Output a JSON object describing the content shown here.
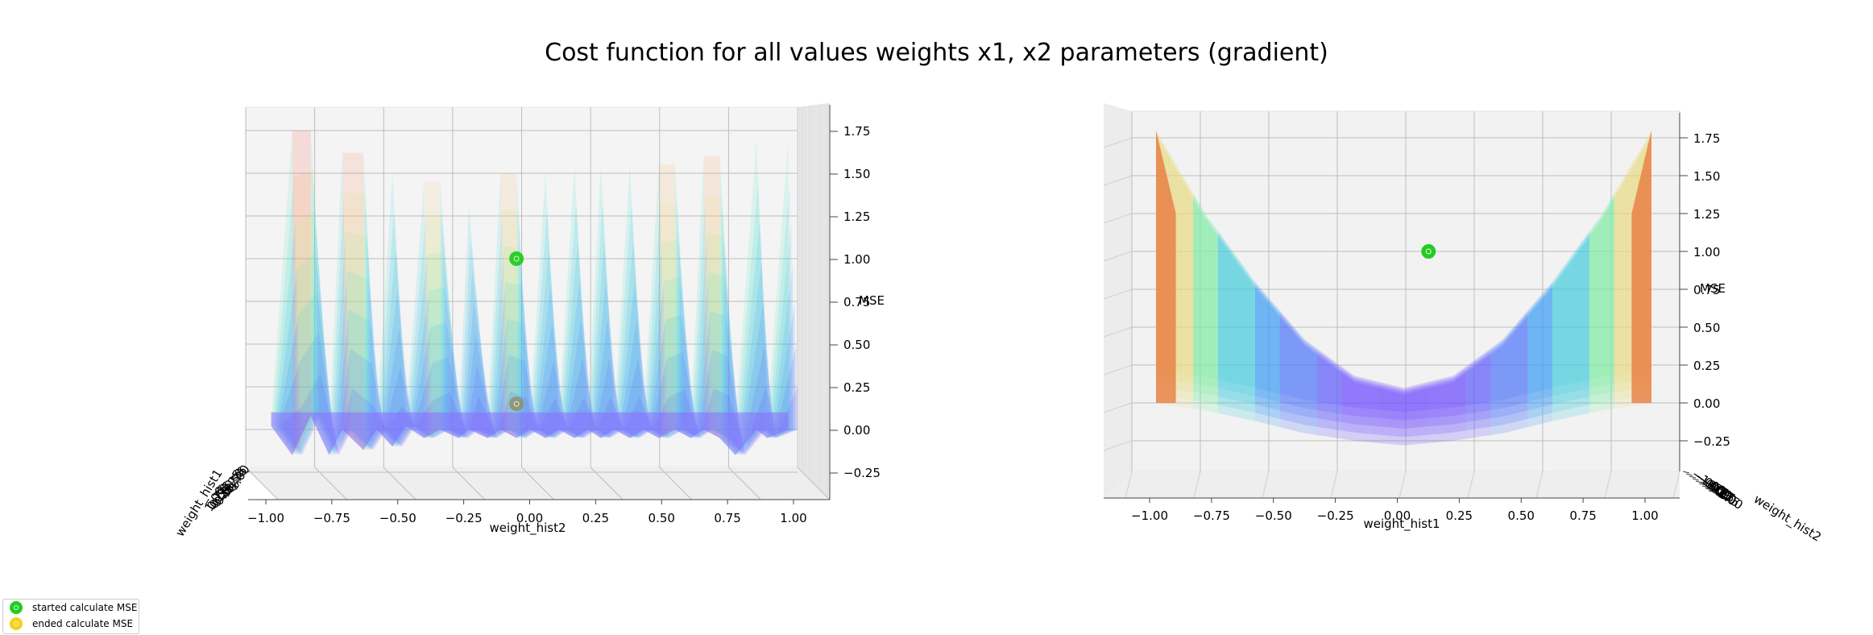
{
  "figure": {
    "title": "Cost function for all values weights x1, x2 parameters (gradient)"
  },
  "legend": {
    "placement": "lower-left",
    "items": [
      {
        "label": "started calculate MSE",
        "color": "#22cc22"
      },
      {
        "label": "ended calculate MSE",
        "color": "#f2d21b"
      }
    ]
  },
  "chart_data": [
    {
      "type": "surface3d",
      "view": "looking along weight_hist1 axis",
      "xlabel": "weight_hist2",
      "ylabel": "weight_hist1",
      "zlabel": "MSE",
      "x_ticks": [
        "−1.00",
        "−0.75",
        "−0.50",
        "−0.25",
        "0.00",
        "0.25",
        "0.50",
        "0.75",
        "1.00"
      ],
      "z_ticks": [
        "−0.25",
        "0.00",
        "0.25",
        "0.50",
        "0.75",
        "1.00",
        "1.25",
        "1.50",
        "1.75"
      ],
      "y_ticks": [
        "−1.00",
        "−0.75",
        "−0.50",
        "−0.25",
        "0.00",
        "0.25",
        "0.50",
        "0.75",
        "1.00"
      ],
      "xlim": [
        -1.0,
        1.0
      ],
      "zlim": [
        -0.3,
        1.9
      ],
      "grid": true,
      "colormap": "rainbow",
      "surface_profile": {
        "x": [
          -0.98,
          -0.9,
          -0.83,
          -0.76,
          -0.71,
          -0.63,
          -0.58,
          -0.52,
          -0.47,
          -0.4,
          -0.34,
          -0.27,
          -0.23,
          -0.16,
          -0.11,
          -0.05,
          0.0,
          0.06,
          0.11,
          0.17,
          0.22,
          0.27,
          0.32,
          0.38,
          0.43,
          0.49,
          0.55,
          0.61,
          0.66,
          0.72,
          0.78,
          0.86,
          0.9,
          0.98
        ],
        "peak": [
          0.05,
          1.75,
          1.75,
          0.0,
          1.62,
          1.62,
          0.05,
          1.5,
          0.05,
          1.45,
          1.45,
          0.05,
          1.3,
          0.05,
          1.5,
          1.5,
          0.05,
          1.5,
          0.05,
          1.55,
          0.05,
          1.55,
          0.05,
          1.55,
          0.05,
          1.55,
          1.55,
          0.05,
          1.6,
          1.6,
          0.05,
          1.7,
          0.05,
          1.7
        ],
        "floor": [
          0.02,
          -0.15,
          0.08,
          -0.15,
          0.0,
          -0.12,
          0.0,
          -0.1,
          0.02,
          -0.05,
          0.0,
          -0.05,
          0.0,
          -0.05,
          0.0,
          -0.05,
          0.0,
          -0.05,
          0.0,
          -0.05,
          0.0,
          -0.05,
          0.0,
          -0.05,
          0.0,
          -0.05,
          0.0,
          -0.05,
          0.0,
          -0.05,
          -0.15,
          0.0,
          -0.05,
          0.0
        ]
      },
      "points": [
        {
          "series": "started calculate MSE",
          "x": -0.05,
          "z": 1.0
        },
        {
          "series": "ended calculate MSE",
          "x": -0.05,
          "z": 0.15
        }
      ]
    },
    {
      "type": "surface3d",
      "view": "looking along weight_hist2 axis",
      "xlabel": "weight_hist1",
      "ylabel": "weight_hist2",
      "zlabel": "MSE",
      "x_ticks": [
        "−1.00",
        "−0.75",
        "−0.50",
        "−0.25",
        "0.00",
        "0.25",
        "0.50",
        "0.75",
        "1.00"
      ],
      "z_ticks": [
        "−0.25",
        "0.00",
        "0.25",
        "0.50",
        "0.75",
        "1.00",
        "1.25",
        "1.50",
        "1.75"
      ],
      "y_ticks": [
        "−1.00",
        "−0.75",
        "−0.50",
        "−0.25",
        "0.00",
        "0.25",
        "0.50",
        "0.75",
        "1.00"
      ],
      "xlim": [
        -1.0,
        1.0
      ],
      "zlim": [
        -0.3,
        1.9
      ],
      "grid": true,
      "colormap": "rainbow",
      "surface_profile": {
        "x": [
          -1.0,
          -0.8,
          -0.6,
          -0.4,
          -0.2,
          0.0,
          0.2,
          0.4,
          0.6,
          0.8,
          1.0
        ],
        "top": [
          1.8,
          1.25,
          0.8,
          0.42,
          0.18,
          0.1,
          0.18,
          0.42,
          0.8,
          1.25,
          1.8
        ],
        "bottom": [
          0.0,
          -0.05,
          -0.12,
          -0.2,
          -0.25,
          -0.28,
          -0.25,
          -0.2,
          -0.12,
          -0.05,
          0.0
        ]
      },
      "points": [
        {
          "series": "started calculate MSE",
          "x": 0.1,
          "z": 1.0
        }
      ]
    }
  ]
}
